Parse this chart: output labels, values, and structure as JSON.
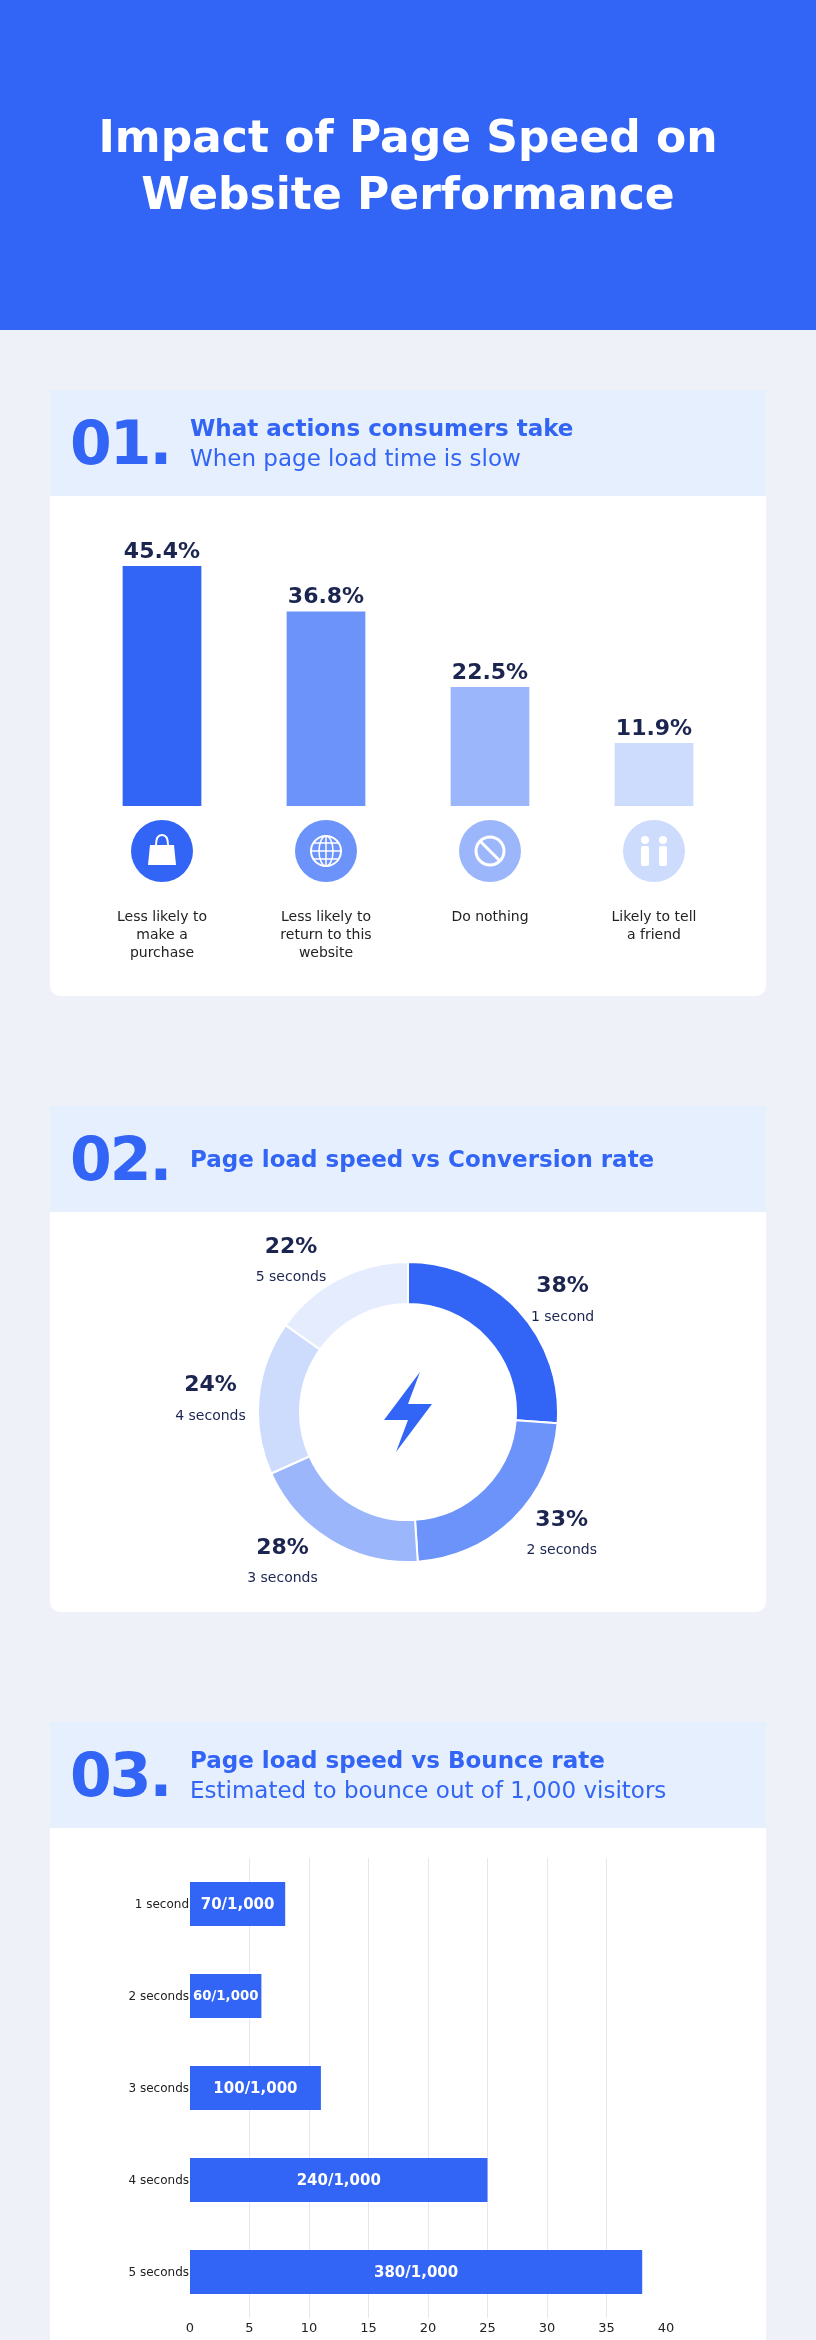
{
  "chart_data": [
    {
      "type": "other",
      "title": "Impact of Page Speed on Website Performance"
    },
    {
      "type": "bar",
      "title": "What actions consumers take",
      "subtitle": "When page load time is slow",
      "annotations": [
        "01."
      ],
      "categories": [
        "Less likely to make a purchase",
        "Less likely to return to this website",
        "Do nothing",
        "Likely to tell a friend"
      ],
      "values": [
        45.4,
        36.8,
        22.5,
        11.9
      ],
      "value_labels": [
        "45.4%",
        "36.8%",
        "22.5%",
        "11.9%"
      ],
      "colors": [
        "#3264f5",
        "#6b93fa",
        "#9cb6fb",
        "#cddbfc"
      ],
      "grid": false,
      "legend": false
    },
    {
      "type": "donut",
      "title": "Page load speed vs Conversion rate",
      "annotations": [
        "02."
      ],
      "categories": [
        "1 second",
        "2 seconds",
        "3 seconds",
        "4 seconds",
        "5 seconds"
      ],
      "values": [
        38,
        33,
        28,
        24,
        22
      ],
      "value_labels": [
        "38%",
        "33%",
        "28%",
        "24%",
        "22%"
      ],
      "colors": [
        "#3264f5",
        "#6b93fa",
        "#9cb6fb",
        "#cddbfc",
        "#e5ecfd"
      ],
      "legend": false
    },
    {
      "type": "bar",
      "orientation": "horizontal",
      "title": "Page load speed vs Bounce rate",
      "subtitle": "Estimated to bounce out of 1,000 visitors",
      "annotations": [
        "03."
      ],
      "categories": [
        "1 second",
        "2 seconds",
        "3 seconds",
        "4 seconds",
        "5 seconds"
      ],
      "values": [
        8,
        6,
        11,
        25,
        38
      ],
      "value_labels": [
        "70/1,000",
        "60/1,000",
        "100/1,000",
        "240/1,000",
        "380/1,000"
      ],
      "color": "#3264f5",
      "xlim": [
        0,
        40
      ],
      "xticks": [
        0,
        5,
        10,
        15,
        20,
        25,
        30,
        35,
        40
      ],
      "grid": "x",
      "legend": false
    }
  ]
}
